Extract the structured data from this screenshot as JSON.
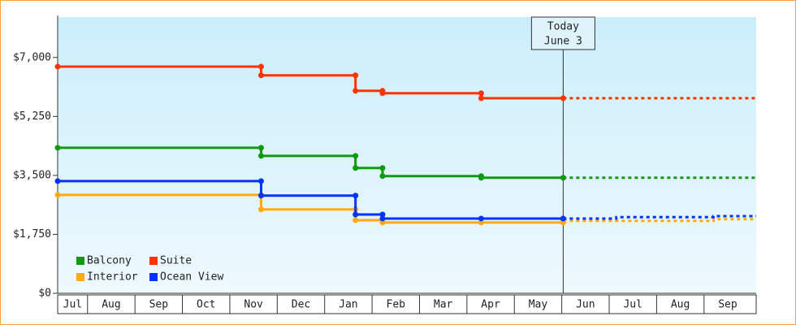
{
  "chart_data": {
    "type": "step",
    "categories": [
      "Jul",
      "Aug",
      "Sep",
      "Oct",
      "Nov",
      "Dec",
      "Jan",
      "Feb",
      "Mar",
      "Apr",
      "May",
      "Jun",
      "Jul",
      "Aug",
      "Sep"
    ],
    "x": [
      0.37,
      4.66,
      6.65,
      7.22,
      9.3,
      11.03
    ],
    "forecast_x": [
      11.03,
      12.15,
      14.2,
      15.1
    ],
    "series": [
      {
        "name": "Balcony",
        "color": "#119911",
        "values": [
          4320,
          4080,
          3720,
          3480,
          3430,
          3430
        ],
        "forecast": [
          3430,
          3430,
          3430,
          3430
        ]
      },
      {
        "name": "Suite",
        "color": "#ff3300",
        "values": [
          6730,
          6470,
          6010,
          5940,
          5790,
          5790
        ],
        "forecast": [
          5790,
          5790,
          5790,
          5790
        ]
      },
      {
        "name": "Interior",
        "color": "#ffaa11",
        "values": [
          2920,
          2490,
          2170,
          2100,
          2100,
          2150
        ],
        "forecast": [
          2150,
          2150,
          2200,
          2200
        ]
      },
      {
        "name": "Ocean View",
        "color": "#0033ff",
        "values": [
          3330,
          2900,
          2340,
          2220,
          2220,
          2220
        ],
        "forecast": [
          2220,
          2260,
          2290,
          2290
        ]
      }
    ],
    "annotation": {
      "x": 11.03,
      "line1": "Today",
      "line2": "June 3"
    },
    "xlim": [
      0.37,
      15.1
    ],
    "ylim": [
      0,
      8200
    ],
    "yticks": [
      {
        "value": 0,
        "label": "$0"
      },
      {
        "value": 1750,
        "label": "$1,750"
      },
      {
        "value": 3500,
        "label": "$3,500"
      },
      {
        "value": 5250,
        "label": "$5,250"
      },
      {
        "value": 7000,
        "label": "$7,000"
      }
    ]
  }
}
